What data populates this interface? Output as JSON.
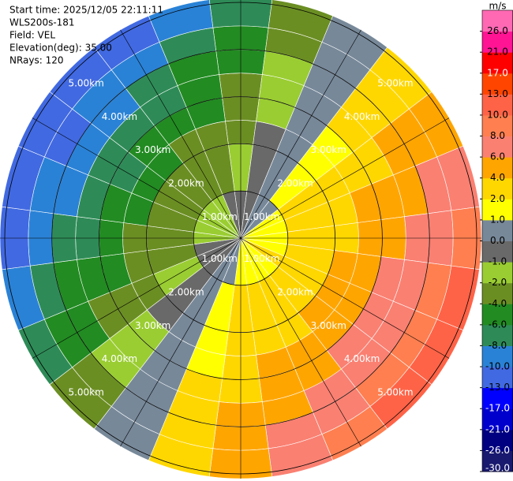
{
  "chart_data": {
    "type": "ppi",
    "info": [
      "Start time: 2025/12/05 22:11:11",
      "WLS200s-181",
      "Field: VEL",
      "Elevation(deg): 35.00",
      "NRays: 120"
    ],
    "unit": "m/s",
    "rlim": [
      0,
      5.1
    ],
    "rings": [
      {
        "value": 1,
        "label": "1.00km"
      },
      {
        "value": 2,
        "label": "2.00km"
      },
      {
        "value": 3,
        "label": "3.00km"
      },
      {
        "value": 4,
        "label": "4.00km"
      },
      {
        "value": 5,
        "label": "5.00km"
      }
    ],
    "azimuths": [
      0,
      15,
      30,
      45,
      60,
      75,
      90,
      105,
      120,
      135,
      150,
      165,
      180,
      195,
      210,
      225,
      240,
      255,
      270,
      285,
      300,
      315,
      330,
      345
    ],
    "gates": [
      0,
      1,
      2,
      2.5,
      3,
      3.5,
      4,
      4.5,
      5.1
    ],
    "values": [
      [
        -1,
        -2,
        -3,
        -3,
        -4,
        -5,
        -5,
        -7
      ],
      [
        -0.5,
        -1,
        -1,
        -2,
        -2,
        -2,
        -3,
        -3
      ],
      [
        0,
        0,
        0,
        0,
        0,
        0,
        0,
        0
      ],
      [
        0.5,
        1,
        1,
        1,
        2,
        2,
        2,
        3
      ],
      [
        1,
        2,
        2,
        3,
        3,
        4,
        4,
        5
      ],
      [
        1,
        2,
        3,
        4,
        4,
        5,
        6,
        7
      ],
      [
        1,
        3,
        3,
        4,
        5,
        6,
        7,
        9
      ],
      [
        1,
        3,
        4,
        5,
        6,
        7,
        8,
        10
      ],
      [
        2,
        3,
        4,
        5,
        6,
        7,
        8,
        10
      ],
      [
        1,
        3,
        4,
        5,
        6,
        7,
        8,
        10
      ],
      [
        1,
        3,
        3,
        4,
        5,
        6,
        7,
        9
      ],
      [
        1,
        2,
        3,
        4,
        4,
        5,
        6,
        7
      ],
      [
        1,
        2,
        2,
        3,
        3,
        4,
        4,
        5
      ],
      [
        0.5,
        1,
        1,
        1,
        2,
        2,
        2,
        3
      ],
      [
        0,
        0,
        0,
        0,
        0,
        0,
        0,
        0
      ],
      [
        -0.5,
        -1,
        -1,
        -2,
        -2,
        -2,
        -3,
        -3
      ],
      [
        -1,
        -2,
        -3,
        -3,
        -4,
        -5,
        -5,
        -7
      ],
      [
        -1,
        -3,
        -4,
        -5,
        -6,
        -6,
        -7,
        -9
      ],
      [
        -2,
        -3,
        -4,
        -6,
        -7,
        -8,
        -9,
        -11
      ],
      [
        -2,
        -4,
        -5,
        -6,
        -8,
        -9,
        -10,
        -13
      ],
      [
        -2,
        -4,
        -5,
        -7,
        -8,
        -9,
        -11,
        -13
      ],
      [
        -2,
        -4,
        -5,
        -6,
        -8,
        -9,
        -10,
        -13
      ],
      [
        -2,
        -3,
        -4,
        -6,
        -7,
        -8,
        -9,
        -11
      ],
      [
        -1,
        -3,
        -4,
        -5,
        -6,
        -6,
        -7,
        -9
      ]
    ],
    "clim": [
      -30,
      30
    ],
    "cticks": [
      {
        "value": -30,
        "label": "-30.0"
      },
      {
        "value": -26,
        "label": "-26.0"
      },
      {
        "value": -21,
        "label": "-21.0"
      },
      {
        "value": -17,
        "label": "-17.0"
      },
      {
        "value": -13,
        "label": "-13.0"
      },
      {
        "value": -10,
        "label": "-10.0"
      },
      {
        "value": -8,
        "label": "-8.0"
      },
      {
        "value": -6,
        "label": "-6.0"
      },
      {
        "value": -4,
        "label": "-4.0"
      },
      {
        "value": -2,
        "label": "-2.0"
      },
      {
        "value": -1,
        "label": "-1.0"
      },
      {
        "value": 0,
        "label": "0.0"
      },
      {
        "value": 1,
        "label": "1.0"
      },
      {
        "value": 2,
        "label": "2.0"
      },
      {
        "value": 4,
        "label": "4.0"
      },
      {
        "value": 6,
        "label": "6.0"
      },
      {
        "value": 8,
        "label": "8.0"
      },
      {
        "value": 10,
        "label": "10.0"
      },
      {
        "value": 13,
        "label": "13.0"
      },
      {
        "value": 17,
        "label": "17.0"
      },
      {
        "value": 21,
        "label": "21.0"
      },
      {
        "value": 26,
        "label": "26.0"
      }
    ],
    "colors": [
      "#191970",
      "#000080",
      "#0000cd",
      "#0000ff",
      "#4169e1",
      "#2a82d6",
      "#2e8b57",
      "#228b22",
      "#6b8e23",
      "#9acd32",
      "#696969",
      "#778899",
      "#ffff00",
      "#ffd700",
      "#ffa500",
      "#fa8072",
      "#ff7f50",
      "#ff6347",
      "#ff4500",
      "#ff0000",
      "#ff1493",
      "#ff69b4"
    ]
  }
}
